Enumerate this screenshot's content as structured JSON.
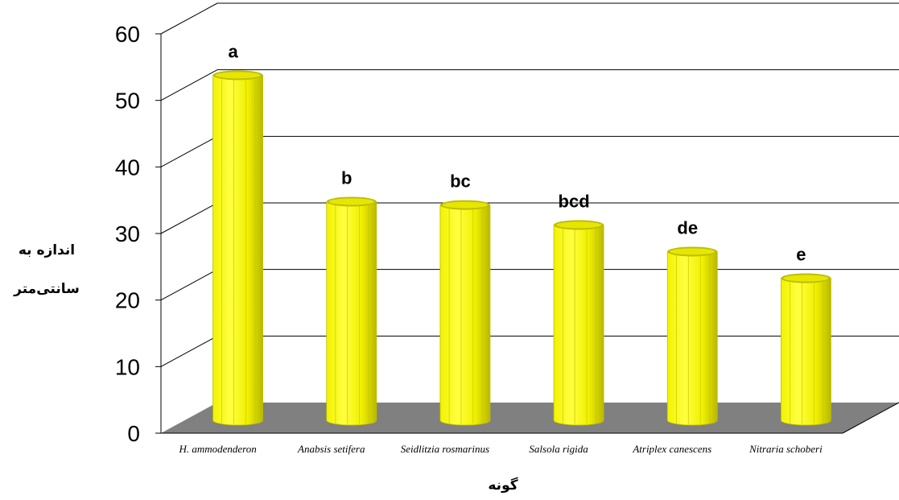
{
  "chart_data": {
    "type": "bar",
    "categories": [
      "H. ammodenderon",
      "Anabsis setifera",
      "Seidlitzia rosmarinus",
      "Salsola  rigida",
      "Atriplex canescens",
      "Nitraria schoberi"
    ],
    "values": [
      51,
      32,
      31.5,
      28.5,
      24.5,
      20.5
    ],
    "significance_labels": [
      "a",
      "b",
      "bc",
      "bcd",
      "de",
      "e"
    ],
    "xlabel": "گونه",
    "ylabel": [
      "اندازه به",
      "سانتی‌متر"
    ],
    "ylim": [
      0,
      60
    ],
    "yticks": [
      "0",
      "10",
      "20",
      "30",
      "40",
      "50",
      "60"
    ],
    "grid": true,
    "colors": {
      "bar": "#ffff00",
      "bar_dark": "#bdbd00",
      "floor": "#808080",
      "grid": "#000000"
    }
  }
}
